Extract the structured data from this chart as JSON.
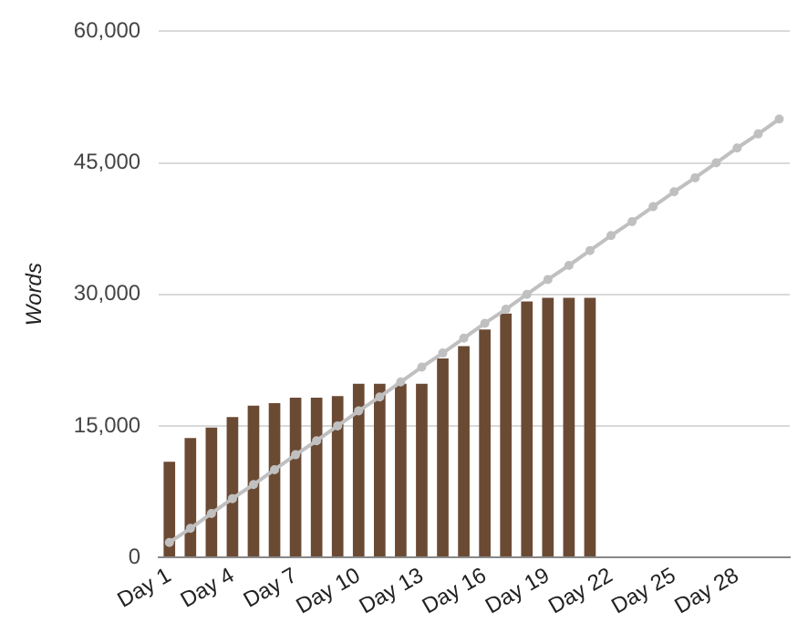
{
  "chart_data": {
    "type": "bar",
    "ylabel": "Words",
    "categories": [
      "Day 1",
      null,
      null,
      "Day 4",
      null,
      null,
      "Day 7",
      null,
      null,
      "Day 10",
      null,
      null,
      "Day 13",
      null,
      null,
      "Day 16",
      null,
      null,
      "Day 19",
      null,
      null,
      "Day 22",
      null,
      null,
      "Day 25",
      null,
      null,
      "Day 28",
      null,
      null
    ],
    "series": [
      {
        "color": "#6b4a34",
        "values": [
          10900,
          13600,
          14800,
          16000,
          17300,
          17600,
          18200,
          18200,
          18400,
          19800,
          19800,
          19800,
          19800,
          22700,
          24100,
          26000,
          27800,
          29200,
          29600,
          29600,
          29600,
          0,
          0,
          0,
          0,
          0,
          0,
          0,
          0,
          0
        ]
      },
      {
        "type": "line",
        "color": "#c0c0c0",
        "marker": "circle",
        "values": [
          1700,
          3300,
          5000,
          6700,
          8300,
          10000,
          11700,
          13300,
          15000,
          16700,
          18300,
          20000,
          21700,
          23300,
          25000,
          26700,
          28300,
          30000,
          31700,
          33300,
          35000,
          36700,
          38300,
          40000,
          41700,
          43300,
          45000,
          46700,
          48300,
          50000
        ]
      }
    ],
    "ylim": [
      0,
      60000
    ],
    "yticks": [
      0,
      {
        "value": 15000,
        "label": "15,000"
      },
      {
        "value": 30000,
        "label": "30,000"
      },
      {
        "value": 45000,
        "label": "45,000"
      },
      {
        "value": 60000,
        "label": "60,000"
      }
    ],
    "grid": "y",
    "legend": false
  }
}
